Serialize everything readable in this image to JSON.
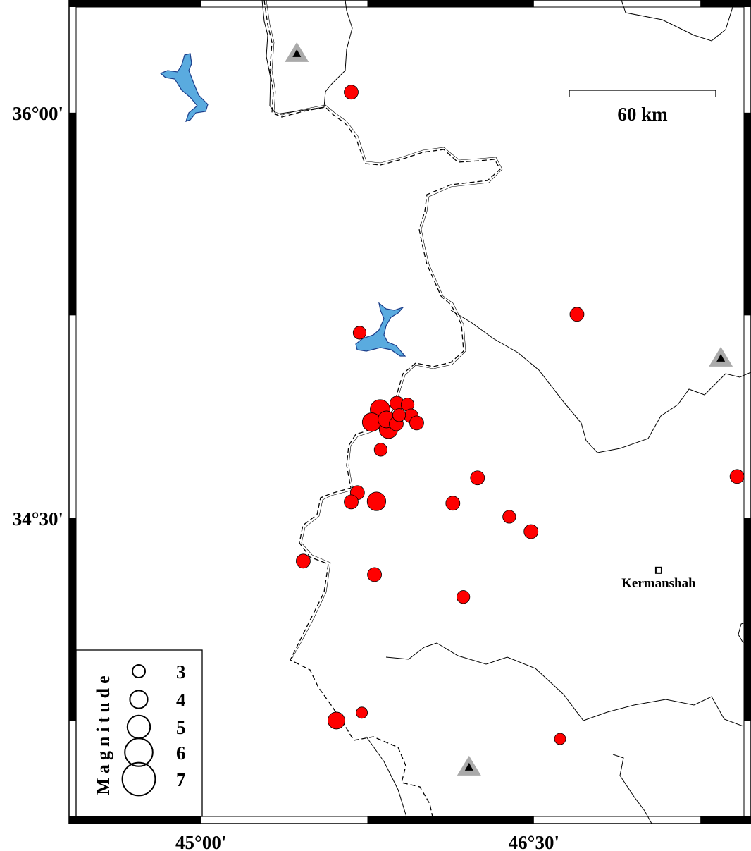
{
  "map": {
    "region": {
      "lon_min": 44.406,
      "lon_max": 47.478,
      "lat_min": 33.37,
      "lat_max": 36.417
    },
    "frame_lon_ticks": [
      {
        "lon": 45.0,
        "label": "45°00'"
      },
      {
        "lon": 46.5,
        "label": "46°30'"
      }
    ],
    "frame_lat_ticks": [
      {
        "lat": 36.0,
        "label": "36°00'"
      },
      {
        "lat": 34.5,
        "label": "34°30'"
      }
    ],
    "frame_interval_deg": 0.75,
    "colors": {
      "event": "#ff0000",
      "lake": "#5aabdf",
      "station": "#aaaaaa",
      "station_inner": "#000000"
    },
    "scale_bar": {
      "label": "60 km"
    },
    "cities": [
      {
        "name": "Kermanshah",
        "lon": 47.062,
        "lat": 34.307
      }
    ],
    "stations": [
      {
        "lon": 45.432,
        "lat": 36.219
      },
      {
        "lon": 47.342,
        "lat": 35.092
      },
      {
        "lon": 46.208,
        "lat": 33.579
      }
    ],
    "events": [
      {
        "lon": 45.677,
        "lat": 36.076,
        "mag": 3.0
      },
      {
        "lon": 46.694,
        "lat": 35.254,
        "mag": 3.0
      },
      {
        "lon": 45.715,
        "lat": 35.186,
        "mag": 2.8
      },
      {
        "lon": 45.807,
        "lat": 34.902,
        "mag": 4.0
      },
      {
        "lon": 45.769,
        "lat": 34.855,
        "mag": 3.8
      },
      {
        "lon": 45.883,
        "lat": 34.925,
        "mag": 3.0
      },
      {
        "lon": 45.931,
        "lat": 34.92,
        "mag": 2.8
      },
      {
        "lon": 45.947,
        "lat": 34.878,
        "mag": 3.0
      },
      {
        "lon": 45.972,
        "lat": 34.852,
        "mag": 3.0
      },
      {
        "lon": 45.845,
        "lat": 34.829,
        "mag": 3.8
      },
      {
        "lon": 45.836,
        "lat": 34.865,
        "mag": 3.5
      },
      {
        "lon": 45.88,
        "lat": 34.849,
        "mag": 3.0
      },
      {
        "lon": 45.893,
        "lat": 34.881,
        "mag": 2.8
      },
      {
        "lon": 45.81,
        "lat": 34.753,
        "mag": 2.8
      },
      {
        "lon": 46.246,
        "lat": 34.649,
        "mag": 3.0
      },
      {
        "lon": 47.415,
        "lat": 34.654,
        "mag": 3.0
      },
      {
        "lon": 45.705,
        "lat": 34.594,
        "mag": 3.0
      },
      {
        "lon": 45.677,
        "lat": 34.56,
        "mag": 3.0
      },
      {
        "lon": 45.791,
        "lat": 34.562,
        "mag": 3.8
      },
      {
        "lon": 46.135,
        "lat": 34.555,
        "mag": 3.0
      },
      {
        "lon": 46.389,
        "lat": 34.505,
        "mag": 2.8
      },
      {
        "lon": 46.487,
        "lat": 34.45,
        "mag": 3.0
      },
      {
        "lon": 45.461,
        "lat": 34.341,
        "mag": 3.0
      },
      {
        "lon": 45.782,
        "lat": 34.291,
        "mag": 3.0
      },
      {
        "lon": 46.182,
        "lat": 34.208,
        "mag": 2.8
      },
      {
        "lon": 45.61,
        "lat": 33.751,
        "mag": 3.5
      },
      {
        "lon": 45.725,
        "lat": 33.78,
        "mag": 2.5
      },
      {
        "lon": 46.618,
        "lat": 33.683,
        "mag": 2.5
      }
    ]
  },
  "legend": {
    "title": "Magnitude",
    "items": [
      {
        "mag": 3,
        "label": "3"
      },
      {
        "mag": 4,
        "label": "4"
      },
      {
        "mag": 5,
        "label": "5"
      },
      {
        "mag": 6,
        "label": "6"
      },
      {
        "mag": 7,
        "label": "7"
      }
    ]
  }
}
